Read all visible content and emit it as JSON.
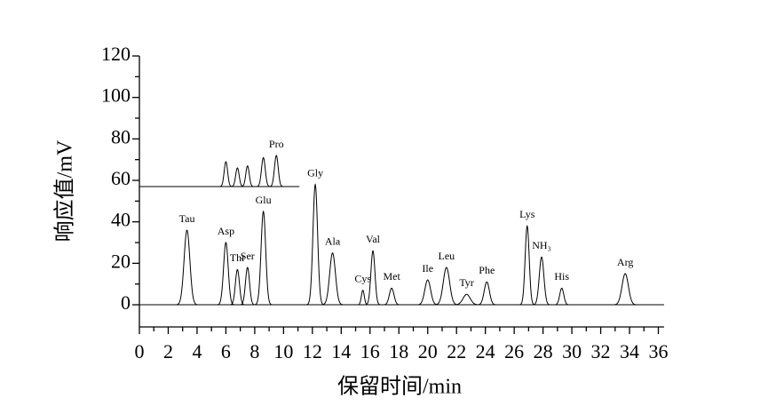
{
  "chart_data": {
    "type": "chromatogram",
    "xlabel": "保留时间/min",
    "ylabel": "响应值/mV",
    "xlim": [
      0,
      36.4
    ],
    "xticks": [
      0,
      2,
      4,
      6,
      8,
      10,
      12,
      14,
      16,
      18,
      20,
      22,
      24,
      26,
      28,
      30,
      32,
      34,
      36
    ],
    "xminorticks": [
      1,
      3,
      5,
      7,
      9,
      11,
      13,
      15,
      17,
      19,
      21,
      23,
      25,
      27,
      29,
      31,
      33,
      35
    ],
    "ylim": [
      -10.7,
      120
    ],
    "yticks": [
      0,
      20,
      40,
      60,
      80,
      100,
      120
    ],
    "yminorticks": [
      10,
      30,
      50,
      70,
      90,
      110
    ],
    "series": [
      {
        "color": "#000000",
        "baseline": 0,
        "range": [
          0,
          36.4
        ],
        "peaks": [
          {
            "label": "Tau",
            "time": 3.3,
            "height": 36,
            "width": 0.2
          },
          {
            "label": "Asp",
            "time": 6.0,
            "height": 30,
            "width": 0.16
          },
          {
            "label": "Thr",
            "time": 6.8,
            "height": 17,
            "width": 0.14
          },
          {
            "label": "Ser",
            "time": 7.5,
            "height": 18,
            "width": 0.14
          },
          {
            "label": "Glu",
            "time": 8.6,
            "height": 45,
            "width": 0.16
          },
          {
            "label": "Gly",
            "time": 12.2,
            "height": 58,
            "width": 0.16
          },
          {
            "label": "Ala",
            "time": 13.4,
            "height": 25,
            "width": 0.2
          },
          {
            "label": "Cys",
            "time": 15.5,
            "height": 7,
            "width": 0.1
          },
          {
            "label": "Val",
            "time": 16.2,
            "height": 26,
            "width": 0.14
          },
          {
            "label": "Met",
            "time": 17.5,
            "height": 8,
            "width": 0.16
          },
          {
            "label": "Ile",
            "time": 20.0,
            "height": 12,
            "width": 0.2
          },
          {
            "label": "Leu",
            "time": 21.3,
            "height": 18,
            "width": 0.22
          },
          {
            "label": "Tyr",
            "time": 22.7,
            "height": 5,
            "width": 0.25
          },
          {
            "label": "Phe",
            "time": 24.1,
            "height": 11,
            "width": 0.18
          },
          {
            "label": "Lys",
            "time": 26.9,
            "height": 38,
            "width": 0.14
          },
          {
            "label": "NH₃",
            "time": 27.9,
            "height": 23,
            "width": 0.16
          },
          {
            "label": "His",
            "time": 29.3,
            "height": 8,
            "width": 0.14
          },
          {
            "label": "Arg",
            "time": 33.7,
            "height": 15,
            "width": 0.22
          }
        ]
      },
      {
        "color": "#000000",
        "baseline": 57,
        "range": [
          0,
          11.1
        ],
        "peaks": [
          {
            "label": null,
            "time": 6.0,
            "height": 12,
            "width": 0.12
          },
          {
            "label": null,
            "time": 6.8,
            "height": 9,
            "width": 0.12
          },
          {
            "label": null,
            "time": 7.5,
            "height": 10,
            "width": 0.12
          },
          {
            "label": null,
            "time": 8.6,
            "height": 14,
            "width": 0.13
          },
          {
            "label": "Pro",
            "time": 9.5,
            "height": 15,
            "width": 0.13
          }
        ]
      }
    ]
  }
}
